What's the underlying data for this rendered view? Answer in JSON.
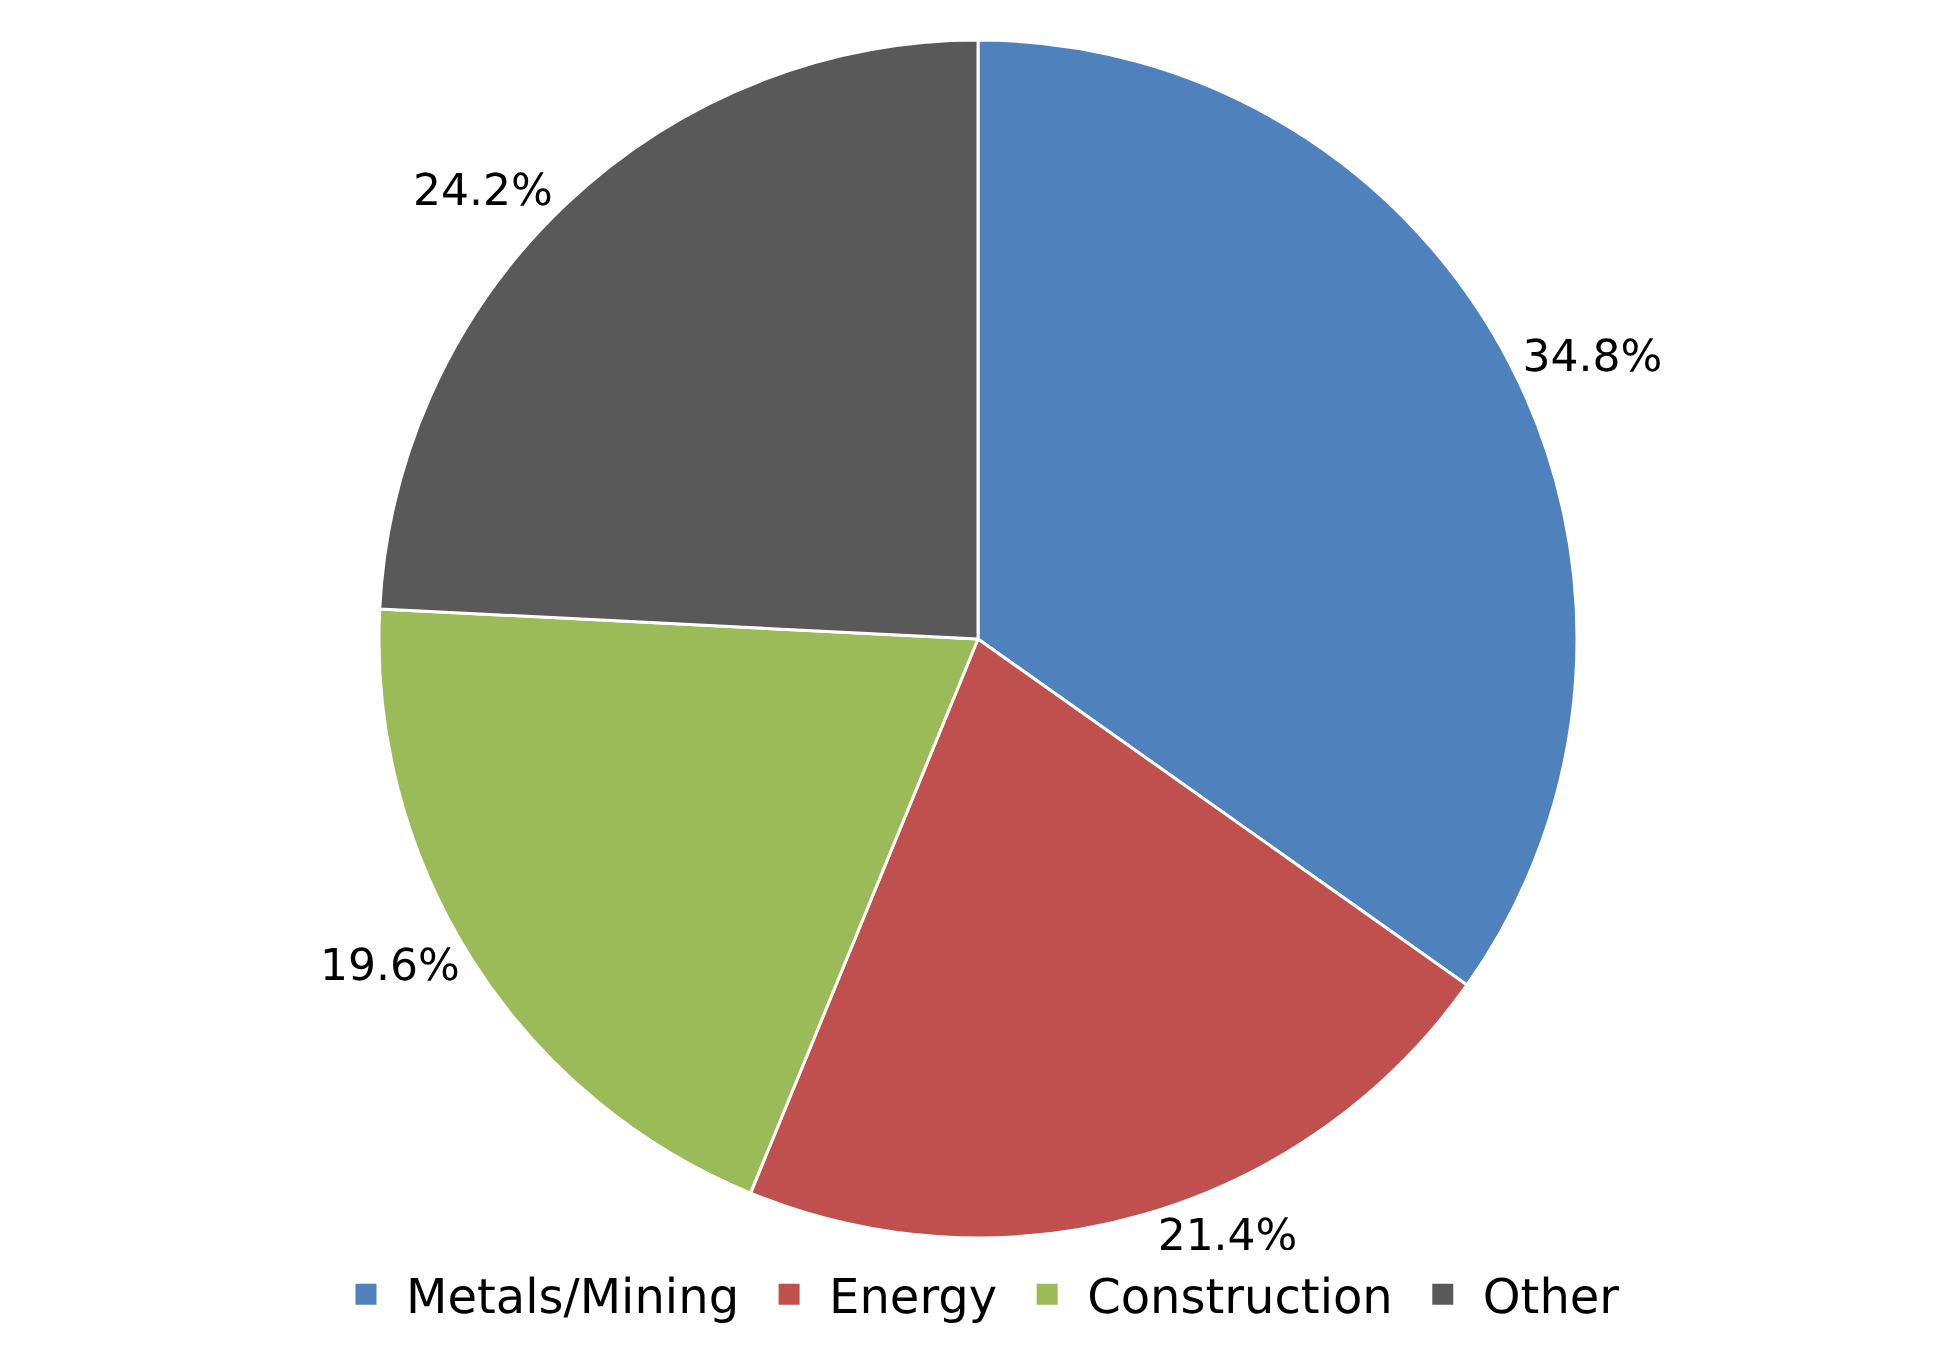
{
  "chart_data": {
    "type": "pie",
    "categories": [
      "Metals/Mining",
      "Energy",
      "Construction",
      "Other"
    ],
    "values": [
      34.8,
      21.4,
      19.6,
      24.2
    ],
    "colors": [
      "#4f81bd",
      "#c0504d",
      "#9bbb59",
      "#595959"
    ],
    "value_labels": [
      "34.8%",
      "21.4%",
      "19.6%",
      "24.2%"
    ],
    "legend": "bottom"
  }
}
